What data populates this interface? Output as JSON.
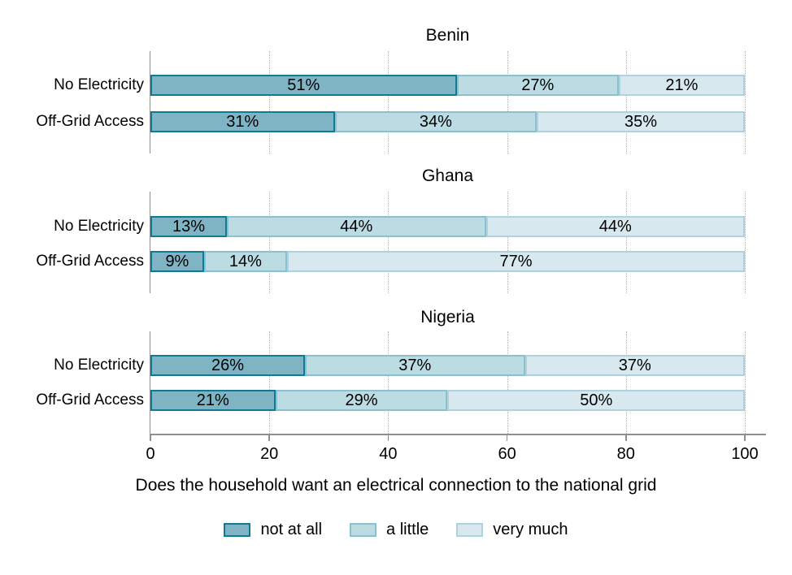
{
  "colors": {
    "axis": "#8f8f8f",
    "grid_dots": "#b0b0b0",
    "text": "#000000",
    "background": "#ffffff"
  },
  "chart_data": {
    "type": "bar",
    "stacked": true,
    "orientation": "horizontal",
    "xlabel": "Does the household want an electrical connection to the national grid",
    "xlim": [
      0,
      100
    ],
    "x_ticks": [
      "0",
      "20",
      "40",
      "60",
      "80",
      "100"
    ],
    "x_tick_values": [
      0,
      20,
      40,
      60,
      80,
      100
    ],
    "grid": "vertical dotted lines at 20, 40, 60, 80, 100",
    "legend_position": "bottom",
    "series_names": [
      "not at all",
      "a little",
      "very much"
    ],
    "panels": [
      {
        "title": "Benin",
        "rows": [
          {
            "category": "No Electricity",
            "values": [
              51,
              27,
              21
            ],
            "labels": [
              "51%",
              "27%",
              "21%"
            ]
          },
          {
            "category": "Off-Grid Access",
            "values": [
              31,
              34,
              35
            ],
            "labels": [
              "31%",
              "34%",
              "35%"
            ]
          }
        ]
      },
      {
        "title": "Ghana",
        "rows": [
          {
            "category": "No Electricity",
            "values": [
              13,
              44,
              44
            ],
            "labels": [
              "13%",
              "44%",
              "44%"
            ]
          },
          {
            "category": "Off-Grid Access",
            "values": [
              9,
              14,
              77
            ],
            "labels": [
              "9%",
              "14%",
              "77%"
            ]
          }
        ]
      },
      {
        "title": "Nigeria",
        "rows": [
          {
            "category": "No Electricity",
            "values": [
              26,
              37,
              37
            ],
            "labels": [
              "26%",
              "37%",
              "37%"
            ]
          },
          {
            "category": "Off-Grid Access",
            "values": [
              21,
              29,
              50
            ],
            "labels": [
              "21%",
              "29%",
              "50%"
            ]
          }
        ]
      }
    ],
    "legend": [
      {
        "label": "not at all",
        "fill": "#7fb4c4",
        "border": "#0f7a93"
      },
      {
        "label": "a little",
        "fill": "#bcdce4",
        "border": "#8bc0ce"
      },
      {
        "label": "very much",
        "fill": "#d7e8ee",
        "border": "#afd2de"
      }
    ]
  }
}
